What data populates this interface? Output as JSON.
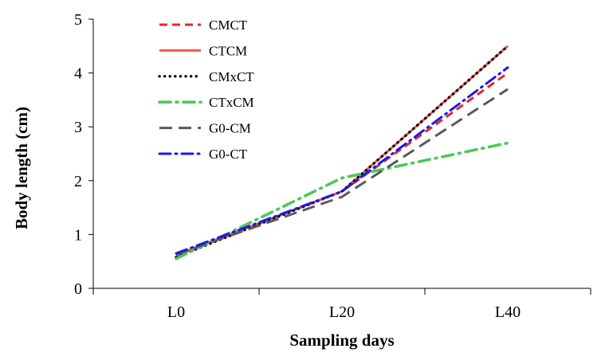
{
  "chart_data": {
    "type": "line",
    "title": "",
    "xlabel": "Sampling days",
    "ylabel": "Body length (cm)",
    "categories": [
      "L0",
      "L20",
      "L40"
    ],
    "ylim": [
      0,
      5
    ],
    "yticks": [
      0,
      1,
      2,
      3,
      4,
      5
    ],
    "grid": false,
    "legend_position": "top-left",
    "series": [
      {
        "name": "CMCT",
        "values": [
          0.6,
          1.8,
          4.0
        ],
        "color": "#e8262a",
        "style": "dash"
      },
      {
        "name": "CTCM",
        "values": [
          0.62,
          1.8,
          4.5
        ],
        "color": "#f4584f",
        "style": "solid"
      },
      {
        "name": "CMxCT",
        "values": [
          0.58,
          1.8,
          4.5
        ],
        "color": "#000000",
        "style": "dot"
      },
      {
        "name": "CTxCM",
        "values": [
          0.55,
          2.05,
          2.7
        ],
        "color": "#4cc85a",
        "style": "dashdot"
      },
      {
        "name": "G0-CM",
        "values": [
          0.63,
          1.7,
          3.7
        ],
        "color": "#5a5a5a",
        "style": "longdash"
      },
      {
        "name": "G0-CT",
        "values": [
          0.65,
          1.8,
          4.1
        ],
        "color": "#1a1aef",
        "style": "dashdotblue"
      }
    ]
  }
}
